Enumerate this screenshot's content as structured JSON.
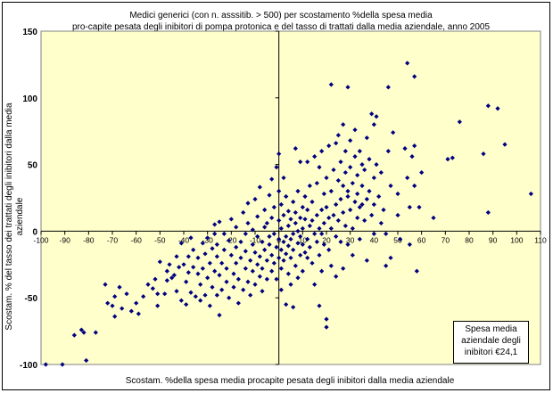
{
  "chart_data": {
    "type": "scatter",
    "title": "Medici generici (con n. asssitib. > 500) per scostamento %della spesa media",
    "subtitle": "pro-capite pesata degli inibitori di pompa protonica e del tasso di trattati dalla media aziendale, anno 2005",
    "xlabel": "Scostam. %della spesa media procapite pesata degli inibitori dalla media aziendale",
    "ylabel_line1": "Scostam. % del tasso dei trattati degli inibitori dalla media",
    "ylabel_line2": "aziendale",
    "xlim": [
      -100,
      110
    ],
    "ylim": [
      -100,
      150
    ],
    "x_ticks": [
      -100,
      -90,
      -80,
      -70,
      -60,
      -50,
      -40,
      -30,
      -20,
      -10,
      0,
      10,
      20,
      30,
      40,
      50,
      60,
      70,
      80,
      90,
      100,
      110
    ],
    "y_ticks": [
      -100,
      -50,
      0,
      50,
      100,
      150
    ],
    "grid": false,
    "marker_color": "#000080",
    "plot_bg_color": "#ffffcc",
    "annotation_lines": [
      "Spesa media",
      "aziendale degli",
      "inibitori €24,1"
    ],
    "points": [
      [
        -98,
        -100
      ],
      [
        -91,
        -100
      ],
      [
        -86,
        -78
      ],
      [
        -83,
        -74
      ],
      [
        -82,
        -76
      ],
      [
        -81,
        -97
      ],
      [
        -77,
        -76
      ],
      [
        -73,
        -40
      ],
      [
        -72,
        -54
      ],
      [
        -70,
        -56
      ],
      [
        -69,
        -64
      ],
      [
        -69,
        -49
      ],
      [
        -67,
        -42
      ],
      [
        -66,
        -58
      ],
      [
        -64,
        -47
      ],
      [
        -62,
        -60
      ],
      [
        -60,
        -54
      ],
      [
        -59,
        -62
      ],
      [
        -57,
        -49
      ],
      [
        -55,
        -40
      ],
      [
        -53,
        -43
      ],
      [
        -52,
        -36
      ],
      [
        -51,
        -56
      ],
      [
        -51,
        -47
      ],
      [
        -50,
        -23
      ],
      [
        -48,
        -47
      ],
      [
        -47,
        -37
      ],
      [
        -47,
        -30
      ],
      [
        -46,
        -25
      ],
      [
        -45,
        -35
      ],
      [
        -44,
        -33
      ],
      [
        -43,
        -45
      ],
      [
        -43,
        -19
      ],
      [
        -42,
        -27
      ],
      [
        -41,
        -52
      ],
      [
        -41,
        -9
      ],
      [
        -40,
        -25
      ],
      [
        -39,
        -55
      ],
      [
        -39,
        -38
      ],
      [
        -38,
        -31
      ],
      [
        -38,
        -19
      ],
      [
        -37,
        -46
      ],
      [
        -37,
        -5
      ],
      [
        -36,
        -27
      ],
      [
        -36,
        -14
      ],
      [
        -35,
        -49
      ],
      [
        -34,
        -32
      ],
      [
        -34,
        -20
      ],
      [
        -33,
        -52
      ],
      [
        -33,
        -40
      ],
      [
        -32,
        -9
      ],
      [
        -32,
        -28
      ],
      [
        -31,
        -48
      ],
      [
        -31,
        -17
      ],
      [
        -30,
        -35
      ],
      [
        -30,
        -5
      ],
      [
        -29,
        -24
      ],
      [
        -29,
        -56
      ],
      [
        -28,
        -13
      ],
      [
        -28,
        -42
      ],
      [
        -27,
        -30
      ],
      [
        -27,
        -2
      ],
      [
        -27,
        5
      ],
      [
        -26,
        -48
      ],
      [
        -26,
        -19
      ],
      [
        -26,
        -10
      ],
      [
        -25,
        7
      ],
      [
        -25,
        -33
      ],
      [
        -25,
        -63
      ],
      [
        -24,
        -24
      ],
      [
        -24,
        -44
      ],
      [
        -23,
        -14
      ],
      [
        -23,
        -2
      ],
      [
        -22,
        -38
      ],
      [
        -22,
        -28
      ],
      [
        -21,
        -7
      ],
      [
        -21,
        -50
      ],
      [
        -20,
        -18
      ],
      [
        -20,
        9
      ],
      [
        -19,
        -32
      ],
      [
        -19,
        -42
      ],
      [
        -18,
        -12
      ],
      [
        -18,
        -24
      ],
      [
        -18,
        3
      ],
      [
        -17,
        -54
      ],
      [
        -17,
        -36
      ],
      [
        -16,
        -8
      ],
      [
        -16,
        -20
      ],
      [
        -15,
        14
      ],
      [
        -15,
        -44
      ],
      [
        -14,
        -28
      ],
      [
        -14,
        -15
      ],
      [
        -14,
        -2
      ],
      [
        -13,
        -38
      ],
      [
        -13,
        6
      ],
      [
        -13,
        21
      ],
      [
        -12,
        -22
      ],
      [
        -12,
        -48
      ],
      [
        -11,
        -10
      ],
      [
        -11,
        -30
      ],
      [
        -11,
        1
      ],
      [
        -10,
        -16
      ],
      [
        -10,
        -40
      ],
      [
        -10,
        24
      ],
      [
        -9,
        -25
      ],
      [
        -9,
        -4
      ],
      [
        -9,
        11
      ],
      [
        -8,
        -34
      ],
      [
        -8,
        -19
      ],
      [
        -8,
        33
      ],
      [
        -7,
        -8
      ],
      [
        -7,
        -45
      ],
      [
        -7,
        -28
      ],
      [
        -6,
        3
      ],
      [
        -6,
        16
      ],
      [
        -6,
        -14
      ],
      [
        -5,
        -22
      ],
      [
        -5,
        -36
      ],
      [
        -5,
        6
      ],
      [
        -4,
        -10
      ],
      [
        -4,
        27
      ],
      [
        -4,
        -4
      ],
      [
        -3,
        -30
      ],
      [
        -3,
        -18
      ],
      [
        -3,
        10
      ],
      [
        -3,
        39
      ],
      [
        -2,
        -2
      ],
      [
        -2,
        -24
      ],
      [
        -2,
        18
      ],
      [
        -1,
        -12
      ],
      [
        -1,
        -36
      ],
      [
        -1,
        48
      ],
      [
        0,
        -6
      ],
      [
        0,
        -20
      ],
      [
        0,
        8
      ],
      [
        0,
        30
      ],
      [
        0,
        58
      ],
      [
        1,
        -14
      ],
      [
        1,
        -28
      ],
      [
        1,
        -44
      ],
      [
        1,
        2
      ],
      [
        1,
        20
      ],
      [
        2,
        -8
      ],
      [
        2,
        -22
      ],
      [
        2,
        12
      ],
      [
        2,
        40
      ],
      [
        3,
        -4
      ],
      [
        3,
        -17
      ],
      [
        3,
        -55
      ],
      [
        3,
        26
      ],
      [
        4,
        -11
      ],
      [
        4,
        4
      ],
      [
        4,
        15
      ],
      [
        4,
        -32
      ],
      [
        5,
        -6
      ],
      [
        5,
        -20
      ],
      [
        5,
        9
      ],
      [
        5,
        -40
      ],
      [
        6,
        22
      ],
      [
        6,
        -2
      ],
      [
        6,
        -14
      ],
      [
        6,
        -57
      ],
      [
        7,
        6
      ],
      [
        7,
        -26
      ],
      [
        7,
        14
      ],
      [
        7,
        62
      ],
      [
        8,
        -9
      ],
      [
        8,
        0
      ],
      [
        8,
        -35
      ],
      [
        8,
        30
      ],
      [
        9,
        10
      ],
      [
        9,
        -18
      ],
      [
        9,
        -4
      ],
      [
        9,
        52
      ],
      [
        10,
        18
      ],
      [
        10,
        -10
      ],
      [
        10,
        2
      ],
      [
        10,
        -30
      ],
      [
        11,
        -16
      ],
      [
        11,
        9
      ],
      [
        11,
        26
      ],
      [
        12,
        -6
      ],
      [
        12,
        -20
      ],
      [
        12,
        16
      ],
      [
        12,
        52
      ],
      [
        13,
        4
      ],
      [
        13,
        34
      ],
      [
        13,
        -12
      ],
      [
        14,
        -24
      ],
      [
        14,
        8
      ],
      [
        14,
        22
      ],
      [
        15,
        -2
      ],
      [
        15,
        -40
      ],
      [
        15,
        56
      ],
      [
        16,
        12
      ],
      [
        16,
        -8
      ],
      [
        16,
        36
      ],
      [
        17,
        2
      ],
      [
        17,
        -18
      ],
      [
        17,
        48
      ],
      [
        17,
        -56
      ],
      [
        18,
        16
      ],
      [
        18,
        -30
      ],
      [
        18,
        -2
      ],
      [
        18,
        60
      ],
      [
        19,
        28
      ],
      [
        19,
        -10
      ],
      [
        19,
        6
      ],
      [
        20,
        18
      ],
      [
        20,
        -72
      ],
      [
        20,
        40
      ],
      [
        20,
        -66
      ],
      [
        21,
        10
      ],
      [
        21,
        -14
      ],
      [
        21,
        64
      ],
      [
        22,
        -26
      ],
      [
        22,
        2
      ],
      [
        22,
        30
      ],
      [
        22,
        110
      ],
      [
        23,
        12
      ],
      [
        23,
        46
      ],
      [
        24,
        20
      ],
      [
        24,
        -4
      ],
      [
        24,
        -34
      ],
      [
        24,
        66
      ],
      [
        25,
        8
      ],
      [
        25,
        38
      ],
      [
        25,
        72
      ],
      [
        26,
        24
      ],
      [
        26,
        -8
      ],
      [
        26,
        52
      ],
      [
        27,
        14
      ],
      [
        27,
        34
      ],
      [
        27,
        -28
      ],
      [
        27,
        80
      ],
      [
        28,
        44
      ],
      [
        28,
        4
      ],
      [
        28,
        60
      ],
      [
        29,
        26
      ],
      [
        29,
        -10
      ],
      [
        29,
        30
      ],
      [
        29,
        108
      ],
      [
        30,
        16
      ],
      [
        30,
        48
      ],
      [
        30,
        68
      ],
      [
        31,
        36
      ],
      [
        31,
        2
      ],
      [
        31,
        -18
      ],
      [
        32,
        22
      ],
      [
        32,
        56
      ],
      [
        32,
        76
      ],
      [
        33,
        28
      ],
      [
        33,
        10
      ],
      [
        33,
        42
      ],
      [
        34,
        18
      ],
      [
        34,
        -6
      ],
      [
        34,
        60
      ],
      [
        35,
        34
      ],
      [
        35,
        50
      ],
      [
        35,
        20
      ],
      [
        36,
        8
      ],
      [
        36,
        46
      ],
      [
        37,
        24
      ],
      [
        37,
        70
      ],
      [
        37,
        -22
      ],
      [
        38,
        30
      ],
      [
        38,
        54
      ],
      [
        39,
        12
      ],
      [
        39,
        88
      ],
      [
        40,
        40
      ],
      [
        40,
        20
      ],
      [
        40,
        -2
      ],
      [
        40,
        80
      ],
      [
        41,
        50
      ],
      [
        41,
        86
      ],
      [
        42,
        26
      ],
      [
        43,
        6
      ],
      [
        43,
        44
      ],
      [
        44,
        16
      ],
      [
        45,
        -2
      ],
      [
        45,
        -26
      ],
      [
        46,
        60
      ],
      [
        46,
        108
      ],
      [
        47,
        34
      ],
      [
        47,
        -20
      ],
      [
        48,
        74
      ],
      [
        50,
        28
      ],
      [
        50,
        12
      ],
      [
        51,
        -6
      ],
      [
        53,
        62
      ],
      [
        54,
        126
      ],
      [
        54,
        40
      ],
      [
        55,
        18
      ],
      [
        55,
        -10
      ],
      [
        56,
        56
      ],
      [
        57,
        64
      ],
      [
        57,
        34
      ],
      [
        57,
        116
      ],
      [
        58,
        -30
      ],
      [
        59,
        18
      ],
      [
        60,
        44
      ],
      [
        65,
        10
      ],
      [
        71,
        54
      ],
      [
        73,
        55
      ],
      [
        76,
        82
      ],
      [
        86,
        58
      ],
      [
        88,
        14
      ],
      [
        88,
        94
      ],
      [
        92,
        92
      ],
      [
        95,
        65
      ],
      [
        106,
        28
      ]
    ]
  }
}
